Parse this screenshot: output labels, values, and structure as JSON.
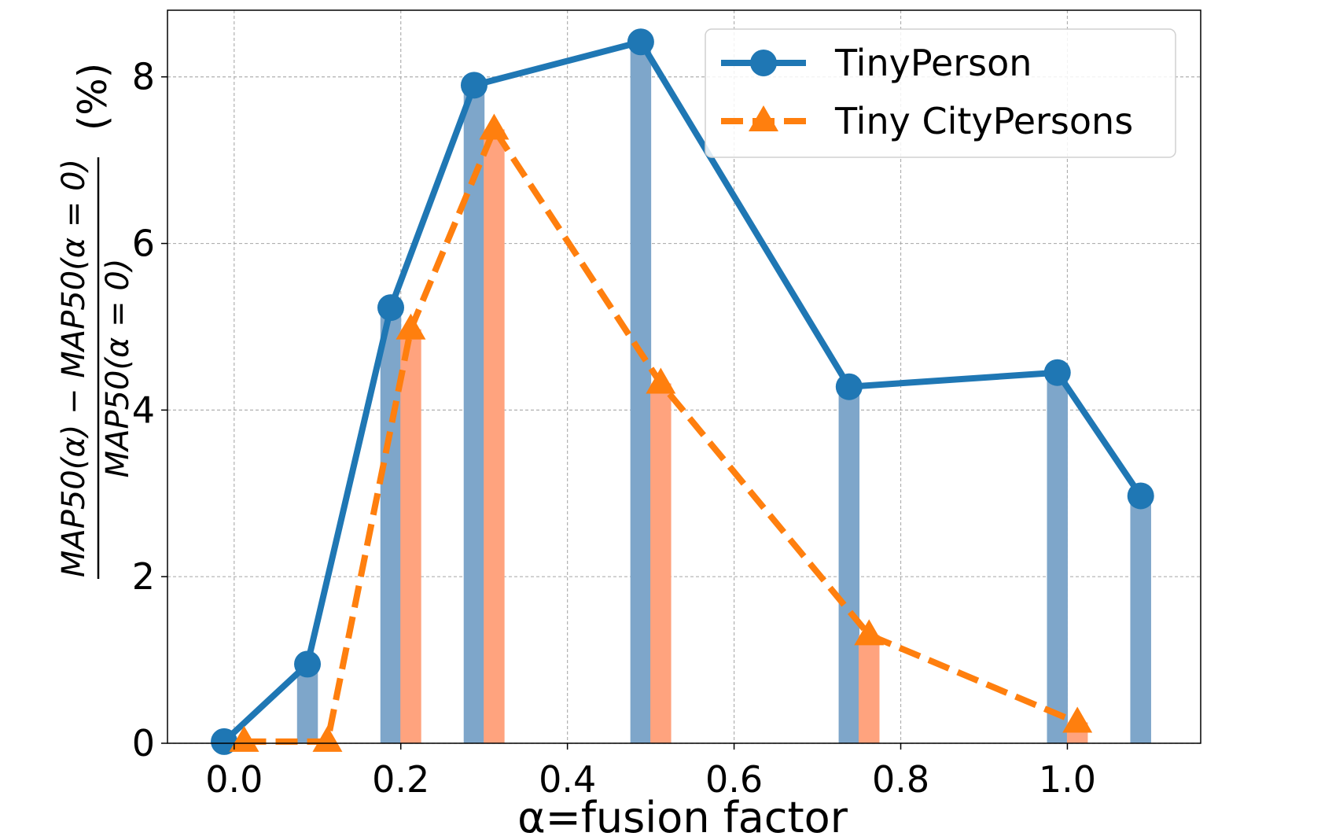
{
  "chart_data": {
    "type": "line",
    "title": "",
    "xlabel": "α=fusion factor",
    "ylabel": {
      "numerator": "MAP50(α) − MAP50(α = 0)",
      "denominator": "MAP50(α = 0)",
      "suffix": "(%)"
    },
    "xlim": [
      -0.08,
      1.16
    ],
    "ylim": [
      0,
      8.8
    ],
    "xticks": [
      0.0,
      0.2,
      0.4,
      0.6,
      0.8,
      1.0
    ],
    "xtick_labels": [
      "0.0",
      "0.2",
      "0.4",
      "0.6",
      "0.8",
      "1.0"
    ],
    "yticks": [
      0,
      2,
      4,
      6,
      8
    ],
    "ytick_labels": [
      "0",
      "2",
      "4",
      "6",
      "8"
    ],
    "grid": true,
    "legend_position": "top-right",
    "bar_width": 0.025,
    "series": [
      {
        "name": "TinyPerson",
        "color": "#1f77b4",
        "bar_color": "#7ea6ca",
        "line_style": "solid",
        "marker": "circle",
        "x": [
          -0.012,
          0.088,
          0.188,
          0.288,
          0.488,
          0.738,
          0.988,
          1.088
        ],
        "y": [
          0.02,
          0.95,
          5.23,
          7.9,
          8.42,
          4.28,
          4.45,
          2.97
        ]
      },
      {
        "name": "Tiny CityPersons",
        "color": "#ff7f0e",
        "bar_color": "#ffa37e",
        "line_style": "dashed",
        "marker": "triangle",
        "x": [
          0.012,
          0.112,
          0.212,
          0.312,
          0.512,
          0.762,
          1.012
        ],
        "y": [
          0.02,
          0.02,
          4.97,
          7.37,
          4.32,
          1.3,
          0.25
        ]
      }
    ]
  }
}
